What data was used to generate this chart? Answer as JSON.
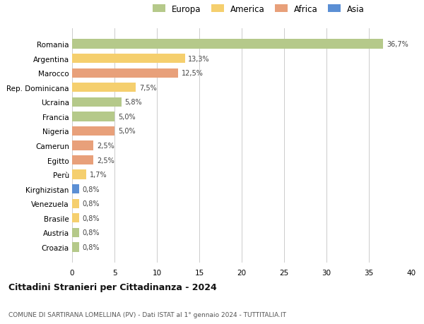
{
  "countries": [
    "Romania",
    "Argentina",
    "Marocco",
    "Rep. Dominicana",
    "Ucraina",
    "Francia",
    "Nigeria",
    "Camerun",
    "Egitto",
    "Perù",
    "Kirghizistan",
    "Venezuela",
    "Brasile",
    "Austria",
    "Croazia"
  ],
  "values": [
    36.7,
    13.3,
    12.5,
    7.5,
    5.8,
    5.0,
    5.0,
    2.5,
    2.5,
    1.7,
    0.8,
    0.8,
    0.8,
    0.8,
    0.8
  ],
  "labels": [
    "36,7%",
    "13,3%",
    "12,5%",
    "7,5%",
    "5,8%",
    "5,0%",
    "5,0%",
    "2,5%",
    "2,5%",
    "1,7%",
    "0,8%",
    "0,8%",
    "0,8%",
    "0,8%",
    "0,8%"
  ],
  "continents": [
    "Europa",
    "America",
    "Africa",
    "America",
    "Europa",
    "Europa",
    "Africa",
    "Africa",
    "Africa",
    "America",
    "Asia",
    "America",
    "America",
    "Europa",
    "Europa"
  ],
  "colors": {
    "Europa": "#b5c98a",
    "America": "#f5cf6e",
    "Africa": "#e8a07a",
    "Asia": "#5b8fd4"
  },
  "title1": "Cittadini Stranieri per Cittadinanza - 2024",
  "title2": "COMUNE DI SARTIRANA LOMELLINA (PV) - Dati ISTAT al 1° gennaio 2024 - TUTTITALIA.IT",
  "xlim": [
    0,
    40
  ],
  "xticks": [
    0,
    5,
    10,
    15,
    20,
    25,
    30,
    35,
    40
  ],
  "background_color": "#ffffff",
  "grid_color": "#cccccc"
}
